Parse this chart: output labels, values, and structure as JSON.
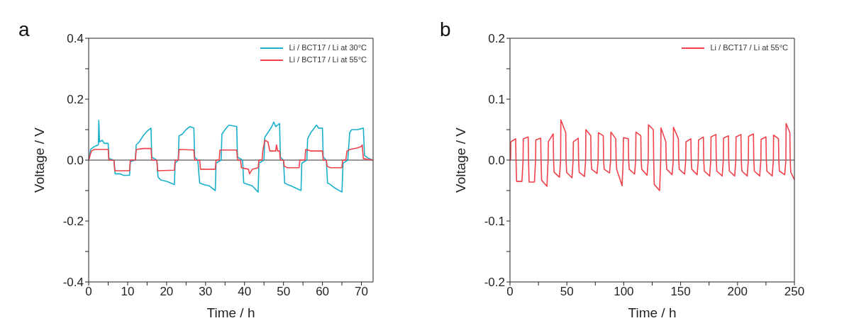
{
  "chart_data": [
    {
      "type": "line",
      "title": "a",
      "xlabel": "Time / h",
      "ylabel": "Voltage / V",
      "xlim": [
        0,
        73
      ],
      "ylim": [
        -0.4,
        0.4
      ],
      "xticks": [
        0,
        {
          "value": 5,
          "label": null
        },
        10,
        {
          "value": 15,
          "label": null
        },
        20,
        {
          "value": 25,
          "label": null
        },
        30,
        {
          "value": 35,
          "label": null
        },
        40,
        {
          "value": 45,
          "label": null
        },
        50,
        {
          "value": 55,
          "label": null
        },
        60,
        {
          "value": 65,
          "label": null
        },
        70
      ],
      "yticks": [
        -0.4,
        {
          "value": -0.3,
          "label": null
        },
        -0.2,
        {
          "value": -0.1,
          "label": null
        },
        {
          "value": 0,
          "label": "0.0"
        },
        {
          "value": 0.1,
          "label": null
        },
        0.2,
        {
          "value": 0.3,
          "label": null
        },
        0.4
      ],
      "legend": "top right",
      "marker": "none",
      "line_style": "solid",
      "ref_lines": [
        {
          "axis": "y",
          "value": 0,
          "color": "#333333"
        }
      ],
      "series": [
        {
          "name": "Li / BCT17 / Li at 30°C",
          "color": "#1ab0cc",
          "x": [
            0,
            0.5,
            1.5,
            2.5,
            2.6,
            2.8,
            3.5,
            4,
            5,
            5.2,
            6.5,
            6.8,
            8,
            9,
            10.5,
            10.7,
            12,
            12.2,
            13,
            14,
            15,
            16,
            16.2,
            17.5,
            17.8,
            18.5,
            20,
            22,
            22.2,
            23,
            23.2,
            24,
            25,
            26,
            27,
            27.2,
            28,
            28.5,
            29.5,
            31,
            32.5,
            32.7,
            34,
            34.2,
            35,
            36,
            38,
            38.2,
            39.5,
            39.8,
            41,
            42,
            43.5,
            43.7,
            45,
            45.2,
            46,
            47,
            47.5,
            48,
            49,
            49.2,
            50,
            50.3,
            51,
            52,
            54.5,
            54.7,
            56,
            56.2,
            57,
            58.5,
            59,
            60,
            60.2,
            61,
            61.3,
            62,
            63,
            65,
            65.3,
            66.5,
            67,
            67.5,
            69,
            70.5,
            70.8,
            72,
            73
          ],
          "values": [
            0,
            0.035,
            0.045,
            0.05,
            0.13,
            0.06,
            0.065,
            0.055,
            0.055,
            0.005,
            0,
            -0.045,
            -0.045,
            -0.05,
            -0.05,
            -0.005,
            0,
            0.05,
            0.06,
            0.08,
            0.095,
            0.105,
            0.01,
            0,
            -0.055,
            -0.065,
            -0.07,
            -0.08,
            -0.01,
            0,
            0.08,
            0.085,
            0.1,
            0.11,
            0.105,
            0.01,
            0,
            -0.075,
            -0.08,
            -0.085,
            -0.1,
            -0.01,
            0,
            0.085,
            0.1,
            0.115,
            0.11,
            0.01,
            0,
            -0.075,
            -0.08,
            -0.085,
            -0.105,
            -0.01,
            0,
            0.075,
            0.09,
            0.11,
            0.125,
            0.11,
            0.12,
            0.01,
            0,
            -0.075,
            -0.08,
            -0.085,
            -0.1,
            -0.01,
            0,
            0.07,
            0.09,
            0.115,
            0.105,
            0.105,
            0.01,
            0,
            -0.075,
            -0.08,
            -0.09,
            -0.105,
            -0.01,
            0,
            0.09,
            0.1,
            0.1,
            0.105,
            0.015,
            0.005,
            0
          ]
        },
        {
          "name": "Li / BCT17 / Li at 55°C",
          "color": "#f0424a",
          "x": [
            0,
            0.7,
            1.5,
            5,
            5.2,
            6.5,
            6.7,
            10.5,
            10.7,
            12,
            12.2,
            14,
            16,
            16.2,
            17.5,
            17.7,
            22,
            22.2,
            23,
            23.2,
            27,
            27.2,
            28.5,
            28.7,
            32.5,
            32.7,
            33.5,
            33.7,
            38,
            38.2,
            39,
            39.2,
            41,
            41.3,
            42,
            43.5,
            43.7,
            44.5,
            44.7,
            45.2,
            46,
            46.5,
            48,
            48.2,
            48.5,
            49,
            49.2,
            50,
            50.2,
            51,
            54,
            54.2,
            55.5,
            55.7,
            57,
            60,
            60.2,
            61,
            61.2,
            62,
            65,
            65.2,
            66,
            66.3,
            67,
            69,
            70,
            70.2,
            70.5,
            73
          ],
          "values": [
            0,
            0.03,
            0.035,
            0.035,
            0,
            0,
            -0.035,
            -0.035,
            0,
            0,
            0.035,
            0.038,
            0.038,
            0,
            0,
            -0.035,
            -0.033,
            0,
            0,
            0.035,
            0.033,
            0,
            0,
            -0.03,
            -0.03,
            0,
            0,
            0.033,
            0.033,
            0,
            0,
            -0.025,
            -0.03,
            -0.045,
            -0.03,
            -0.025,
            0,
            0,
            0.03,
            0.065,
            0.06,
            0.03,
            0.03,
            0.05,
            0.03,
            0.03,
            0,
            0,
            -0.02,
            -0.025,
            -0.025,
            0,
            0,
            0.035,
            0.03,
            0.03,
            0,
            0,
            -0.02,
            -0.025,
            -0.025,
            0,
            0,
            0.03,
            0.035,
            0.04,
            0.045,
            0.05,
            0.005,
            0
          ]
        }
      ]
    },
    {
      "type": "line",
      "title": "b",
      "xlabel": "Time / h",
      "ylabel": "Voltage / V",
      "xlim": [
        0,
        250
      ],
      "ylim": [
        -0.2,
        0.2
      ],
      "xticks": [
        0,
        {
          "value": 25,
          "label": null
        },
        50,
        {
          "value": 75,
          "label": null
        },
        100,
        {
          "value": 125,
          "label": null
        },
        150,
        {
          "value": 175,
          "label": null
        },
        200,
        {
          "value": 225,
          "label": null
        },
        250
      ],
      "yticks": [
        -0.2,
        {
          "value": -0.15,
          "label": null
        },
        -0.1,
        {
          "value": -0.05,
          "label": null
        },
        {
          "value": 0,
          "label": "0.0"
        },
        {
          "value": 0.05,
          "label": null
        },
        0.1,
        {
          "value": 0.15,
          "label": null
        },
        0.2
      ],
      "legend": "top right",
      "marker": "none",
      "line_style": "solid",
      "ref_lines": [
        {
          "axis": "y",
          "value": 0,
          "color": "#333333"
        }
      ],
      "series": [
        {
          "name": "Li / BCT17 / Li at 55°C",
          "color": "#f0424a",
          "x": [
            0.5,
            0.7,
            5,
            5.3,
            5.8,
            10.5,
            11.5,
            11.7,
            16,
            16.3,
            16.8,
            21.5,
            22.5,
            22.7,
            27,
            27.3,
            27.8,
            32.5,
            33.5,
            33.7,
            38,
            38.3,
            38.8,
            43.5,
            44.5,
            44.7,
            49,
            49.3,
            49.8,
            54.5,
            55.5,
            55.7,
            60,
            60.3,
            60.8,
            65.5,
            66.5,
            66.7,
            71,
            71.3,
            71.8,
            76.5,
            77.5,
            77.7,
            82,
            82.3,
            82.8,
            87.5,
            88.5,
            88.7,
            93,
            93.3,
            93.8,
            98.5,
            99.5,
            99.7,
            104,
            104.3,
            104.8,
            109.5,
            110.5,
            110.7,
            115,
            115.3,
            115.8,
            120.5,
            121.5,
            121.7,
            126,
            126.3,
            126.8,
            131.5,
            132.5,
            132.7,
            137,
            137.3,
            137.8,
            142.5,
            143.5,
            143.7,
            148,
            148.3,
            148.8,
            153.5,
            154.5,
            154.7,
            159,
            159.3,
            159.8,
            164.5,
            165.5,
            165.7,
            170,
            170.3,
            170.8,
            175.5,
            176.5,
            176.7,
            181,
            181.3,
            181.8,
            186.5,
            187.5,
            187.7,
            192,
            192.3,
            192.8,
            197.5,
            198.5,
            198.7,
            203,
            203.3,
            203.8,
            208.5,
            209.5,
            209.7,
            214,
            214.3,
            214.8,
            219.5,
            220.5,
            220.7,
            225,
            225.3,
            225.8,
            230.5,
            231.5,
            231.7,
            236,
            236.3,
            236.8,
            241.5,
            242.5,
            242.7,
            246,
            246.3,
            246.8,
            250
          ],
          "values": [
            0,
            0.03,
            0.035,
            0,
            -0.035,
            -0.035,
            0,
            0.035,
            0.038,
            0,
            -0.036,
            -0.036,
            0,
            0.033,
            0.036,
            0,
            -0.033,
            -0.043,
            0,
            0.03,
            0.043,
            0,
            -0.02,
            -0.028,
            0,
            0.066,
            0.045,
            0,
            -0.02,
            -0.029,
            0,
            0.03,
            0.036,
            0,
            -0.02,
            -0.027,
            0,
            0.05,
            0.04,
            0,
            -0.015,
            -0.022,
            0,
            0.045,
            0.04,
            0,
            -0.015,
            -0.021,
            0,
            0.046,
            0.035,
            0,
            -0.015,
            -0.042,
            0,
            0.037,
            0.035,
            0,
            -0.015,
            -0.023,
            0,
            0.046,
            0.04,
            0,
            -0.015,
            -0.025,
            0,
            0.058,
            0.05,
            0,
            -0.04,
            -0.05,
            0,
            0.053,
            0.03,
            0,
            -0.015,
            -0.024,
            0,
            0.054,
            0.035,
            0,
            -0.015,
            -0.023,
            0,
            0.03,
            0.035,
            0,
            -0.015,
            -0.024,
            0,
            0.033,
            0.038,
            0,
            -0.018,
            -0.026,
            0,
            0.038,
            0.042,
            0,
            -0.018,
            -0.026,
            0,
            0.036,
            0.04,
            0,
            -0.018,
            -0.026,
            0,
            0.038,
            0.042,
            0,
            -0.018,
            -0.026,
            0,
            0.039,
            0.043,
            0,
            -0.018,
            -0.026,
            0,
            0.034,
            0.038,
            0,
            -0.018,
            -0.026,
            0,
            0.041,
            0.035,
            0,
            -0.018,
            -0.024,
            0,
            0.06,
            0.045,
            0,
            -0.02,
            -0.032
          ]
        }
      ]
    }
  ]
}
